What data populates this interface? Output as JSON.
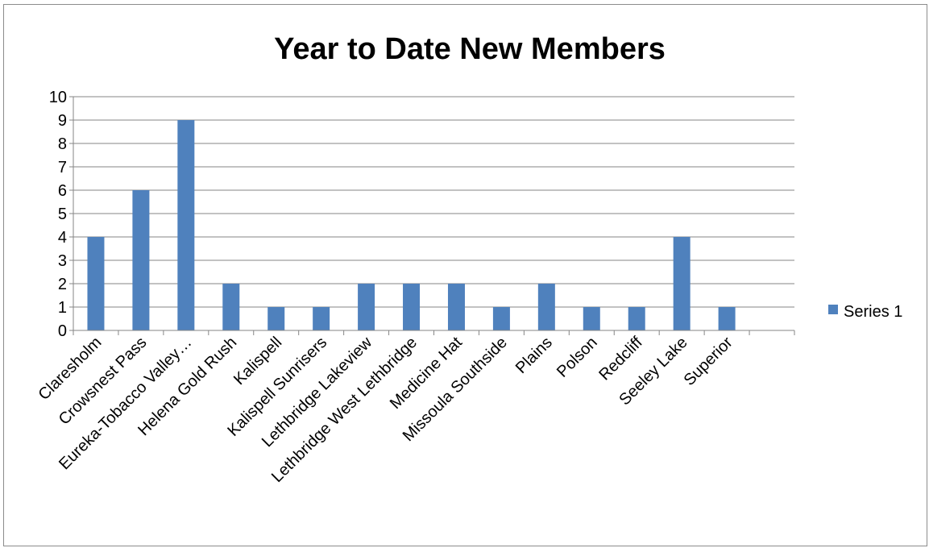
{
  "chart_data": {
    "type": "bar",
    "title": "Year to Date New Members",
    "xlabel": "",
    "ylabel": "",
    "categories": [
      "Claresholm",
      "Crowsnest Pass",
      "Eureka-Tobacco Valley…",
      "Helena Gold Rush",
      "Kalispell",
      "Kalispell Sunrisers",
      "Lethbridge Lakeview",
      "Lethbridge West Lethbridge",
      "Medicine Hat",
      "Missoula Southside",
      "Plains",
      "Polson",
      "Redcliff",
      "Seeley Lake",
      "Superior",
      ""
    ],
    "series": [
      {
        "name": "Series 1",
        "color": "#4f81bd",
        "values": [
          4,
          6,
          9,
          2,
          1,
          1,
          2,
          2,
          2,
          1,
          2,
          1,
          1,
          4,
          1,
          null
        ]
      }
    ],
    "ylim": [
      0,
      10
    ],
    "yticks": [
      0,
      1,
      2,
      3,
      4,
      5,
      6,
      7,
      8,
      9,
      10
    ],
    "grid": true,
    "legend_position": "right"
  }
}
